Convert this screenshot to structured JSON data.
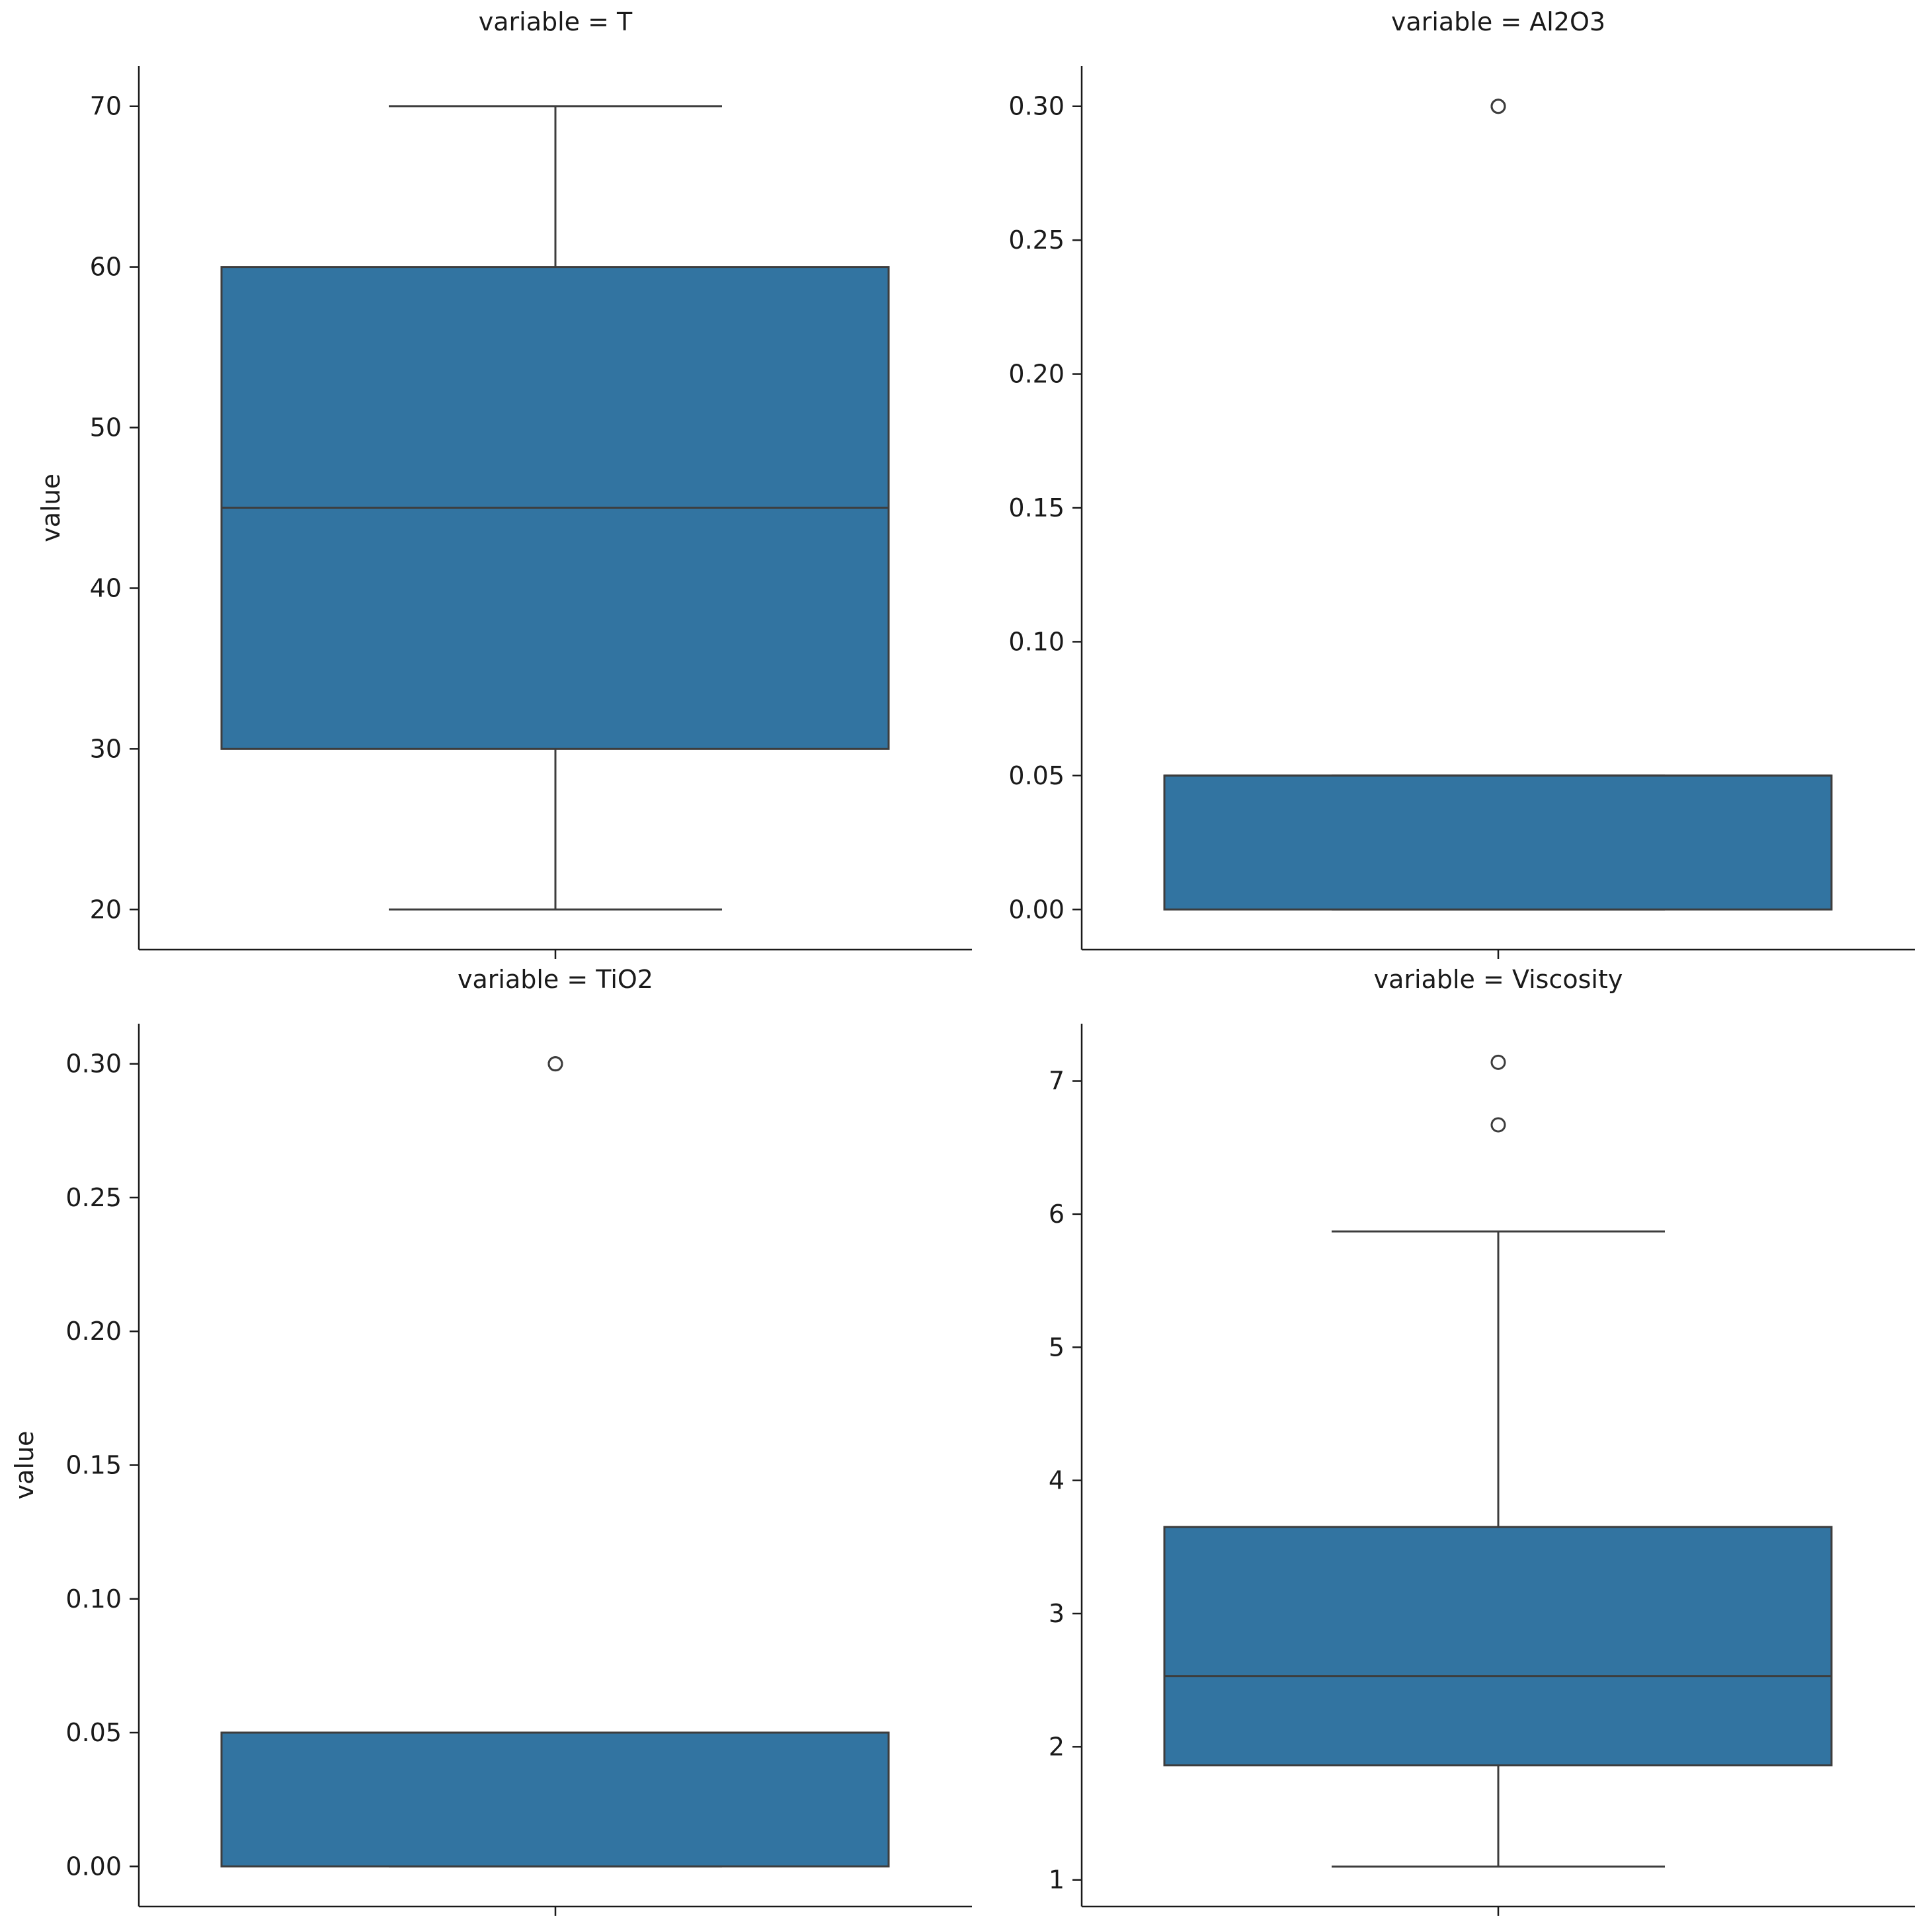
{
  "colors": {
    "box_fill": "#3274a1",
    "stroke": "#3d3d3d",
    "axis": "#1a1a1a",
    "background": "#ffffff"
  },
  "chart_data": [
    {
      "type": "box",
      "title": "variable = T",
      "ylabel": "value",
      "ylim": [
        17.5,
        72.5
      ],
      "yticks": [
        20,
        30,
        40,
        50,
        60,
        70
      ],
      "ytick_labels": [
        "20",
        "30",
        "40",
        "50",
        "60",
        "70"
      ],
      "box": {
        "whisker_low": 20,
        "q1": 30,
        "median": 45,
        "q3": 60,
        "whisker_high": 70
      },
      "outliers": []
    },
    {
      "type": "box",
      "title": "variable = Al2O3",
      "ylabel": "",
      "ylim": [
        -0.015,
        0.315
      ],
      "yticks": [
        0.0,
        0.05,
        0.1,
        0.15,
        0.2,
        0.25,
        0.3
      ],
      "ytick_labels": [
        "0.00",
        "0.05",
        "0.10",
        "0.15",
        "0.20",
        "0.25",
        "0.30"
      ],
      "box": {
        "whisker_low": 0.0,
        "q1": 0.0,
        "median": 0.05,
        "q3": 0.05,
        "whisker_high": 0.05
      },
      "outliers": [
        0.3,
        0.3
      ]
    },
    {
      "type": "box",
      "title": "variable = TiO2",
      "ylabel": "value",
      "ylim": [
        -0.015,
        0.315
      ],
      "yticks": [
        0.0,
        0.05,
        0.1,
        0.15,
        0.2,
        0.25,
        0.3
      ],
      "ytick_labels": [
        "0.00",
        "0.05",
        "0.10",
        "0.15",
        "0.20",
        "0.25",
        "0.30"
      ],
      "box": {
        "whisker_low": 0.0,
        "q1": 0.0,
        "median": 0.05,
        "q3": 0.05,
        "whisker_high": 0.05
      },
      "outliers": [
        0.3,
        0.3
      ]
    },
    {
      "type": "box",
      "title": "variable = Viscosity",
      "ylabel": "",
      "ylim": [
        0.8,
        7.43
      ],
      "yticks": [
        1,
        2,
        3,
        4,
        5,
        6,
        7
      ],
      "ytick_labels": [
        "1",
        "2",
        "3",
        "4",
        "5",
        "6",
        "7"
      ],
      "box": {
        "whisker_low": 1.1,
        "q1": 1.86,
        "median": 2.53,
        "q3": 3.65,
        "whisker_high": 5.87
      },
      "outliers": [
        7.14,
        6.67
      ]
    }
  ]
}
